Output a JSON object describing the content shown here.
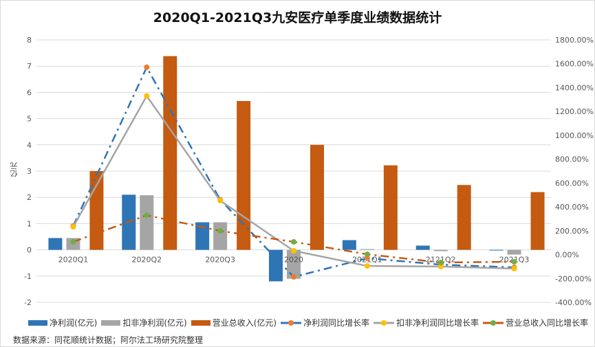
{
  "chart_data": {
    "type": "bar+line",
    "title": "2020Q1-2021Q3九安医疗单季度业绩数据统计",
    "ylabel": "亿元",
    "ylim": [
      -2,
      8
    ],
    "y2lim": [
      -400,
      1800
    ],
    "yticks": [
      "-2",
      "-1",
      "0",
      "1",
      "2",
      "3",
      "4",
      "5",
      "6",
      "7",
      "8"
    ],
    "y2ticks": [
      "-400.00%",
      "-200.00%",
      "0.00%",
      "200.00%",
      "400.00%",
      "600.00%",
      "800.00%",
      "1000.00%",
      "1200.00%",
      "1400.00%",
      "1600.00%",
      "1800.00%"
    ],
    "grid": true,
    "legend": "bottom",
    "categories": [
      "2020Q1",
      "2020Q2",
      "2020Q3",
      "2020",
      "2021Q1",
      "2121Q2",
      "2021Q3"
    ],
    "bars": [
      {
        "name": "净利润(亿元)",
        "color": "#2e75b6",
        "values": [
          0.45,
          2.1,
          1.05,
          -1.2,
          0.37,
          0.16,
          -0.02
        ]
      },
      {
        "name": "扣非净利润(亿元)",
        "color": "#a5a5a5",
        "values": [
          0.45,
          2.08,
          1.05,
          -1.1,
          0.03,
          -0.05,
          -0.18
        ]
      },
      {
        "name": "营业总收入(亿元)",
        "color": "#c55a11",
        "values": [
          3.0,
          7.38,
          5.67,
          4.0,
          3.22,
          2.47,
          2.2
        ]
      }
    ],
    "lines": [
      {
        "name": "净利润同比增长率",
        "color": "#2e75b6",
        "marker": "#ed7d31",
        "style": "dashdot",
        "values": [
          240,
          1570,
          460,
          -187,
          -30,
          -84,
          -107
        ]
      },
      {
        "name": "扣非净利润同比增长率",
        "color": "#a5a5a5",
        "marker": "#ffc000",
        "style": "solid",
        "values": [
          233,
          1330,
          452,
          32,
          -95,
          -100,
          -117
        ]
      },
      {
        "name": "营业总收入同比增长率",
        "color": "#c55a11",
        "marker": "#70ad47",
        "style": "dashdot",
        "values": [
          107,
          330,
          199,
          107,
          3,
          -66,
          -60
        ]
      }
    ]
  },
  "source": "数据来源：同花顺统计数据；阿尔法工场研究院整理"
}
